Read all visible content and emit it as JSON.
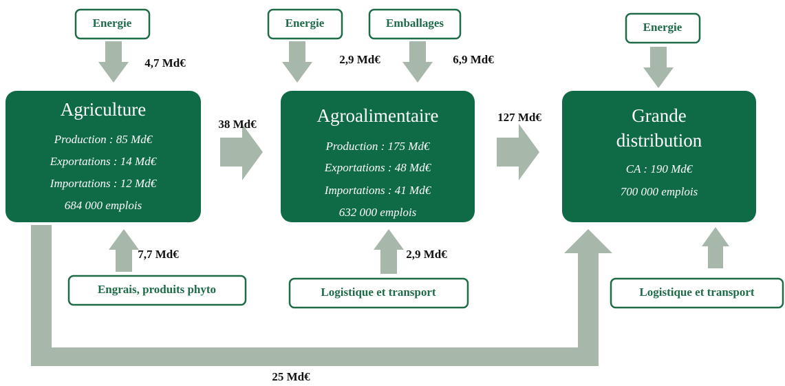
{
  "nodes": [
    {
      "title": [
        "Agriculture"
      ],
      "details": [
        "Production : 85 Md€",
        "Exportations : 14 Md€",
        "Importations : 12 Md€",
        "684 000 emplois"
      ]
    },
    {
      "title": [
        "Agroalimentaire"
      ],
      "details": [
        "Production : 175 Md€",
        "Exportations : 48 Md€",
        "Importations : 41 Md€",
        "632 000 emplois"
      ]
    },
    {
      "title": [
        "Grande",
        "distribution"
      ],
      "details": [
        "CA : 190 Md€",
        "700 000 emplois"
      ]
    }
  ],
  "inputs": [
    "Energie",
    "Energie",
    "Emballages",
    "Energie",
    "Engrais, produits phyto",
    "Logistique et transport",
    "Logistique et transport"
  ],
  "flows": [
    "4,7 Md€",
    "2,9 Md€",
    "6,9 Md€",
    "38 Md€",
    "127 Md€",
    "7,7 Md€",
    "2,9 Md€",
    "25 Md€"
  ]
}
